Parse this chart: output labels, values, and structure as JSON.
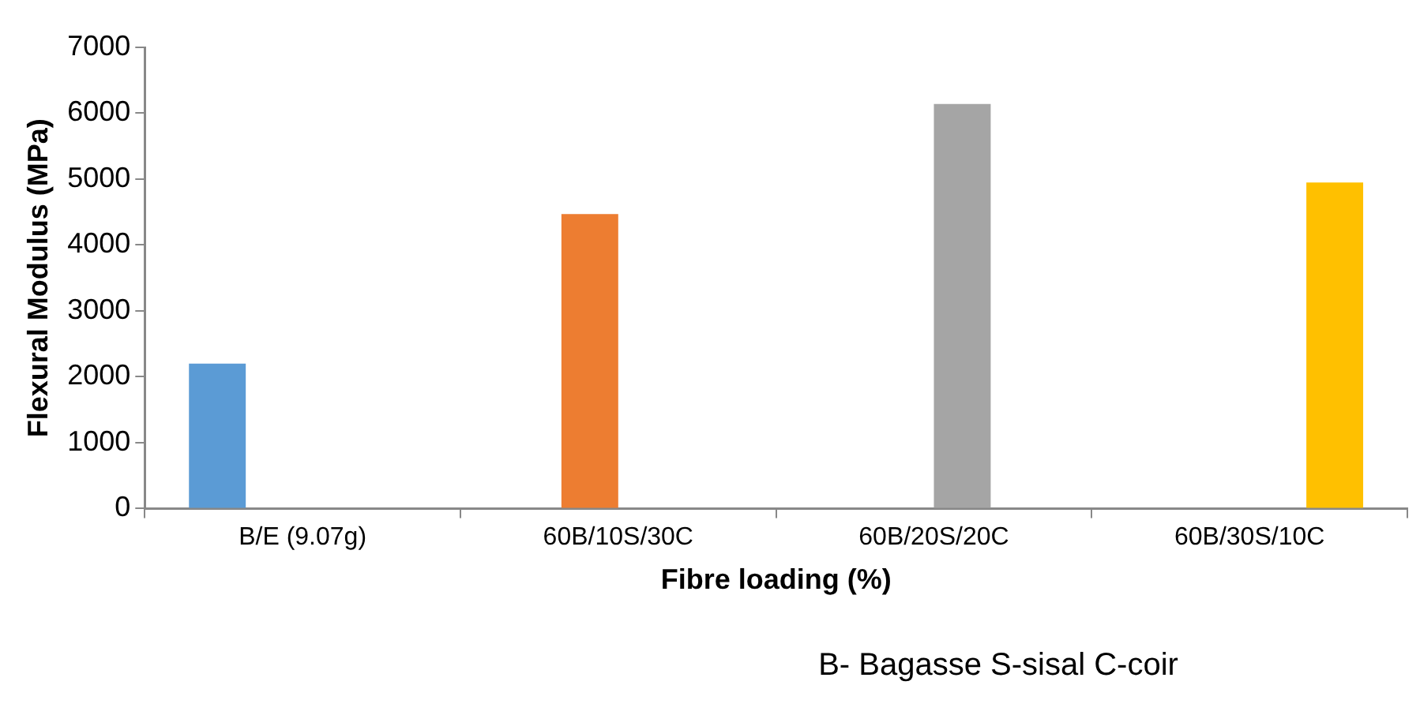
{
  "chart_data": {
    "type": "bar",
    "xlabel": "Fibre loading (%)",
    "ylabel": "Flexural Modulus (MPa)",
    "categories": [
      "B/E (9.07g)",
      "60B/10S/30C",
      "60B/20S/20C",
      "60B/30S/10C"
    ],
    "series": [
      {
        "color": "#5b9bd5",
        "values": [
          2200,
          null,
          null,
          null
        ]
      },
      {
        "color": "#ed7d31",
        "values": [
          null,
          4470,
          null,
          null
        ]
      },
      {
        "color": "#a5a5a5",
        "values": [
          null,
          null,
          6140,
          null
        ]
      },
      {
        "color": "#ffc000",
        "values": [
          null,
          null,
          null,
          4950
        ]
      }
    ],
    "ylim": [
      0,
      7000
    ],
    "yticks": [
      0,
      1000,
      2000,
      3000,
      4000,
      5000,
      6000,
      7000
    ],
    "grid": false,
    "legend": false,
    "annotations": [
      "B- Bagasse S-sisal C-coir"
    ]
  }
}
